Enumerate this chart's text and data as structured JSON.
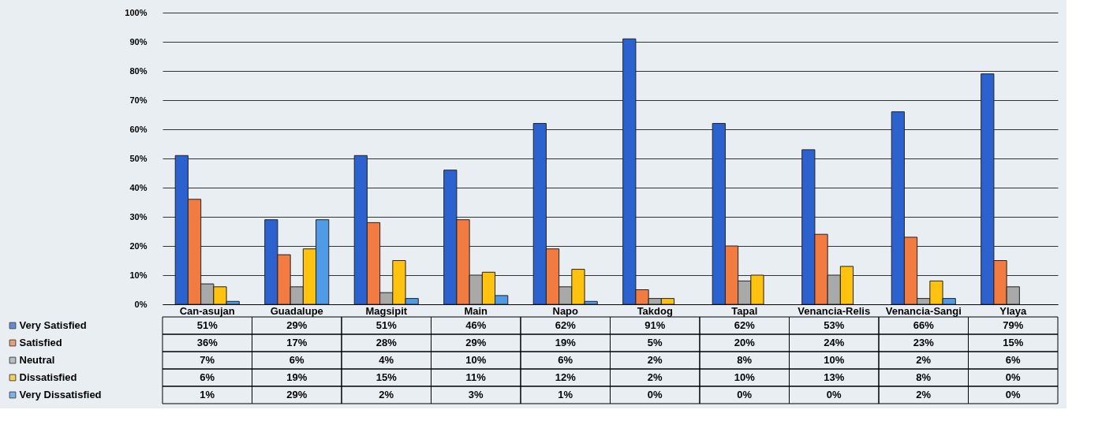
{
  "chart_data": {
    "type": "bar",
    "categories": [
      "Can-asujan",
      "Guadalupe",
      "Magsipit",
      "Main",
      "Napo",
      "Takdog",
      "Tapal",
      "Venancia-Relis",
      "Venancia-Sangi",
      "Ylaya"
    ],
    "series": [
      {
        "name": "Very Satisfied",
        "color": "#2b62d0",
        "values": [
          51,
          29,
          51,
          46,
          62,
          91,
          62,
          53,
          66,
          79
        ],
        "value_labels": [
          "51%",
          "29%",
          "51%",
          "46%",
          "62%",
          "91%",
          "62%",
          "53%",
          "66%",
          "79%"
        ]
      },
      {
        "name": "Satisfied",
        "color": "#f27b42",
        "values": [
          36,
          17,
          28,
          29,
          19,
          5,
          20,
          24,
          23,
          15
        ],
        "value_labels": [
          "36%",
          "17%",
          "28%",
          "29%",
          "19%",
          "5%",
          "20%",
          "24%",
          "23%",
          "15%"
        ]
      },
      {
        "name": "Neutral",
        "color": "#a9a9a9",
        "values": [
          7,
          6,
          4,
          10,
          6,
          2,
          8,
          10,
          2,
          6
        ],
        "value_labels": [
          "7%",
          "6%",
          "4%",
          "10%",
          "6%",
          "2%",
          "8%",
          "10%",
          "2%",
          "6%"
        ]
      },
      {
        "name": "Dissatisfied",
        "color": "#ffc20e",
        "values": [
          6,
          19,
          15,
          11,
          12,
          2,
          10,
          13,
          8,
          0
        ],
        "value_labels": [
          "6%",
          "19%",
          "15%",
          "11%",
          "12%",
          "2%",
          "10%",
          "13%",
          "8%",
          "0%"
        ]
      },
      {
        "name": "Very Dissatisfied",
        "color": "#4f9be8",
        "values": [
          1,
          29,
          2,
          3,
          1,
          0,
          0,
          0,
          2,
          0
        ],
        "value_labels": [
          "1%",
          "29%",
          "2%",
          "3%",
          "1%",
          "0%",
          "0%",
          "0%",
          "2%",
          "0%"
        ]
      }
    ],
    "ylim": [
      0,
      100
    ],
    "yticks": [
      {
        "value": 0,
        "label": "0%"
      },
      {
        "value": 10,
        "label": "10%"
      },
      {
        "value": 20,
        "label": "20%"
      },
      {
        "value": 30,
        "label": "30%"
      },
      {
        "value": 40,
        "label": "40%"
      },
      {
        "value": 50,
        "label": "50%"
      },
      {
        "value": 60,
        "label": "60%"
      },
      {
        "value": 70,
        "label": "70%"
      },
      {
        "value": 80,
        "label": "80%"
      },
      {
        "value": 90,
        "label": "90%"
      },
      {
        "value": 100,
        "label": "100%"
      }
    ],
    "grid": "y",
    "legend": "bottom",
    "data_labels": true
  }
}
